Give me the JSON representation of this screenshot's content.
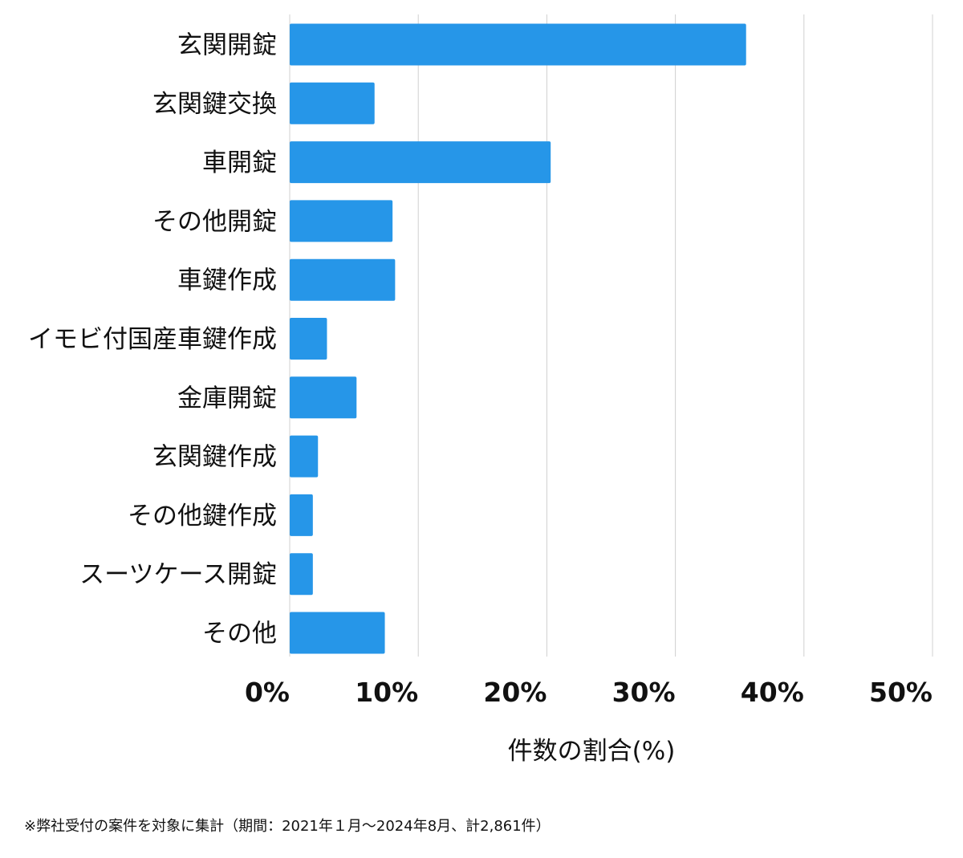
{
  "chart_data": {
    "type": "bar",
    "orientation": "horizontal",
    "categories": [
      "玄関開錠",
      "玄関鍵交換",
      "車開錠",
      "その他開錠",
      "車鍵作成",
      "イモビ付国産車鍵作成",
      "金庫開錠",
      "玄関鍵作成",
      "その他鍵作成",
      "スーツケース開錠",
      "その他"
    ],
    "values": [
      35.5,
      6.6,
      20.3,
      8.0,
      8.2,
      2.9,
      5.2,
      2.2,
      1.8,
      1.8,
      7.4
    ],
    "xlim": [
      0,
      50
    ],
    "ticks": [
      0,
      10,
      20,
      30,
      40,
      50
    ],
    "tick_labels": [
      "0%",
      "10%",
      "20%",
      "30%",
      "40%",
      "50%"
    ],
    "xlabel": "件数の割合(%)",
    "ylabel": "",
    "title": "",
    "grid": true,
    "bar_color": "#2696e8",
    "grid_color": "#d0d0d0"
  },
  "footnote": "※弊社受付の案件を対象に集計（期間：2021年１月〜2024年8月、計2,861件）"
}
